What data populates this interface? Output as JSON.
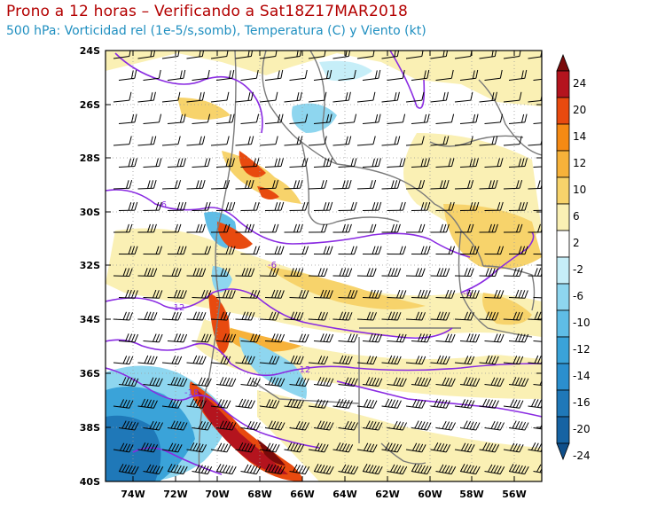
{
  "title": "Prono a 12 horas – Verificando a Sat18Z17MAR2018",
  "subtitle": "500 hPa: Vorticidad rel (1e-5/s,somb), Temperatura (C) y Viento (kt)",
  "map": {
    "lat_labels": [
      "24S",
      "26S",
      "28S",
      "30S",
      "32S",
      "34S",
      "36S",
      "38S",
      "40S"
    ],
    "lon_labels": [
      "74W",
      "72W",
      "70W",
      "68W",
      "66W",
      "64W",
      "62W",
      "60W",
      "58W",
      "56W"
    ],
    "lat_range": [
      -40,
      -24
    ],
    "lon_range": [
      -75.2,
      -55
    ],
    "temperature_contour_labels": [
      "-6",
      "-6",
      "-6",
      "-12",
      "-12",
      "-18"
    ]
  },
  "colorbar": {
    "labels": [
      "24",
      "20",
      "14",
      "12",
      "10",
      "6",
      "2",
      "-2",
      "-6",
      "-10",
      "-12",
      "-14",
      "-16",
      "-20",
      "-24"
    ],
    "colors": [
      "#7a0a0a",
      "#b4141e",
      "#e84a0f",
      "#f58a14",
      "#f7b23a",
      "#f7d36b",
      "#faf0b4",
      "#ffffff",
      "#c6eef8",
      "#8ed6ef",
      "#5fbde6",
      "#3aa3d9",
      "#2b8fce",
      "#1f78b8",
      "#1663a3",
      "#0f4f8a"
    ]
  }
}
